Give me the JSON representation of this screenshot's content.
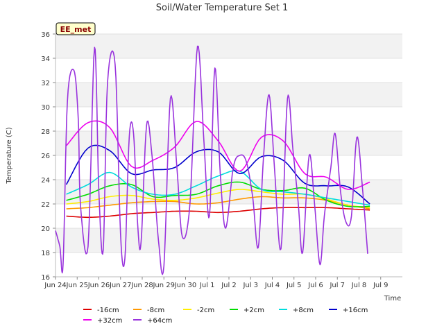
{
  "chart_data": {
    "type": "line",
    "title": "Soil/Water Temperature Set 1",
    "xlabel": "Time",
    "ylabel": "Temperature (C)",
    "ylim": [
      16,
      36
    ],
    "yticks": [
      16,
      18,
      20,
      22,
      24,
      26,
      28,
      30,
      32,
      34,
      36
    ],
    "xlim": [
      0,
      16
    ],
    "xticks": [
      {
        "v": 0,
        "label": "Jun 24"
      },
      {
        "v": 1,
        "label": "Jun 25"
      },
      {
        "v": 2,
        "label": "Jun 26"
      },
      {
        "v": 3,
        "label": "Jun 27"
      },
      {
        "v": 4,
        "label": "Jun 28"
      },
      {
        "v": 5,
        "label": "Jun 29"
      },
      {
        "v": 6,
        "label": "Jun 30"
      },
      {
        "v": 7,
        "label": "Jul 1"
      },
      {
        "v": 8,
        "label": "Jul 2"
      },
      {
        "v": 9,
        "label": "Jul 3"
      },
      {
        "v": 10,
        "label": "Jul 4"
      },
      {
        "v": 11,
        "label": "Jul 5"
      },
      {
        "v": 12,
        "label": "Jul 6"
      },
      {
        "v": 13,
        "label": "Jul 7"
      },
      {
        "v": 14,
        "label": "Jul 8"
      },
      {
        "v": 15,
        "label": "Jul 9"
      }
    ],
    "site_label": "EE_met",
    "grid": "horizontal bands",
    "legend_position": "bottom",
    "series": [
      {
        "name": "-16cm",
        "color": "#dd0000",
        "x": [
          0.5,
          1.5,
          2.5,
          3.5,
          4.5,
          5.5,
          6.5,
          7.5,
          8.5,
          9.5,
          10.5,
          11.5,
          12.5,
          13.5,
          14.5
        ],
        "y": [
          21.0,
          20.9,
          21.0,
          21.2,
          21.3,
          21.4,
          21.4,
          21.3,
          21.4,
          21.6,
          21.7,
          21.7,
          21.7,
          21.6,
          21.5
        ]
      },
      {
        "name": "-8cm",
        "color": "#ff9900",
        "x": [
          0.5,
          1.5,
          2.5,
          3.5,
          4.5,
          5.5,
          6.5,
          7.5,
          8.5,
          9.5,
          10.5,
          11.5,
          12.5,
          13.5,
          14.5
        ],
        "y": [
          21.6,
          21.7,
          21.9,
          22.1,
          22.2,
          22.2,
          22.0,
          22.1,
          22.4,
          22.6,
          22.5,
          22.5,
          22.3,
          21.9,
          21.6
        ]
      },
      {
        "name": "-2cm",
        "color": "#ffee00",
        "x": [
          0.5,
          1.5,
          2.5,
          3.5,
          4.5,
          5.5,
          6.5,
          7.5,
          8.5,
          9.5,
          10.5,
          11.5,
          12.5,
          13.5,
          14.5
        ],
        "y": [
          22.0,
          22.2,
          22.6,
          22.7,
          22.4,
          22.3,
          22.5,
          22.9,
          23.2,
          23.0,
          22.8,
          22.8,
          22.4,
          21.9,
          21.7
        ]
      },
      {
        "name": "+2cm",
        "color": "#00dd00",
        "x": [
          0.5,
          1.5,
          2.5,
          3.5,
          4.5,
          5.5,
          6.5,
          7.5,
          8.5,
          9.5,
          10.5,
          11.5,
          12.5,
          13.5,
          14.5
        ],
        "y": [
          22.3,
          22.8,
          23.5,
          23.6,
          22.6,
          22.7,
          22.8,
          23.5,
          23.8,
          23.2,
          23.1,
          23.3,
          22.3,
          21.8,
          21.8
        ]
      },
      {
        "name": "+8cm",
        "color": "#00dddd",
        "x": [
          0.5,
          1.5,
          2.5,
          3.5,
          4.5,
          5.5,
          6.5,
          7.5,
          8.5,
          9.5,
          10.5,
          11.5,
          12.5,
          13.5,
          14.5
        ],
        "y": [
          22.8,
          23.6,
          24.6,
          23.4,
          22.8,
          22.8,
          23.5,
          24.3,
          24.7,
          23.2,
          23.0,
          22.8,
          22.5,
          22.2,
          21.9
        ]
      },
      {
        "name": "+16cm",
        "color": "#0000cc",
        "x": [
          0.5,
          1.5,
          2.5,
          3.5,
          4.5,
          5.5,
          6.5,
          7.5,
          8.5,
          9.5,
          10.5,
          11.5,
          12.5,
          13.5,
          14.5
        ],
        "y": [
          23.6,
          26.6,
          26.4,
          24.5,
          24.8,
          25.0,
          26.3,
          26.3,
          24.5,
          25.9,
          25.6,
          23.7,
          23.5,
          23.4,
          22.0
        ]
      },
      {
        "name": "+32cm",
        "color": "#ee00ee",
        "x": [
          0.5,
          1.5,
          2.5,
          3.5,
          4.5,
          5.5,
          6.5,
          7.5,
          8.5,
          9.5,
          10.5,
          11.5,
          12.5,
          13.5,
          14.5
        ],
        "y": [
          26.8,
          28.7,
          28.3,
          25.1,
          25.6,
          26.7,
          28.8,
          27.2,
          24.7,
          27.5,
          27.2,
          24.5,
          24.2,
          23.2,
          23.8
        ]
      },
      {
        "name": "+64cm",
        "color": "#9933dd",
        "x": [
          0.0,
          0.2,
          0.35,
          0.55,
          0.85,
          1.05,
          1.15,
          1.5,
          1.8,
          2.0,
          2.2,
          2.4,
          2.75,
          3.0,
          3.2,
          3.4,
          3.6,
          3.8,
          3.95,
          4.2,
          4.45,
          4.75,
          5.0,
          5.3,
          5.6,
          5.85,
          6.2,
          6.55,
          6.85,
          7.1,
          7.35,
          7.6,
          7.85,
          8.2,
          8.5,
          8.8,
          9.1,
          9.35,
          9.6,
          9.85,
          10.1,
          10.4,
          10.7,
          10.95,
          11.2,
          11.4,
          11.7,
          11.95,
          12.2,
          12.4,
          12.7,
          12.9,
          13.15,
          13.4,
          13.65,
          13.9,
          14.15,
          14.4
        ],
        "y": [
          19.8,
          18.5,
          17.0,
          30.5,
          33.0,
          29.0,
          22.0,
          18.5,
          34.9,
          23.0,
          18.2,
          32.0,
          33.5,
          19.5,
          17.5,
          27.5,
          27.8,
          20.0,
          18.9,
          28.5,
          26.0,
          19.0,
          16.9,
          30.7,
          25.0,
          19.3,
          22.0,
          35.0,
          27.0,
          21.0,
          33.2,
          24.5,
          20.0,
          25.0,
          26.0,
          25.5,
          22.5,
          18.4,
          26.0,
          31.0,
          25.0,
          18.3,
          30.7,
          26.5,
          22.0,
          18.0,
          26.0,
          22.0,
          17.0,
          21.0,
          25.0,
          27.8,
          23.0,
          20.5,
          21.0,
          27.5,
          23.5,
          17.9
        ]
      }
    ]
  }
}
